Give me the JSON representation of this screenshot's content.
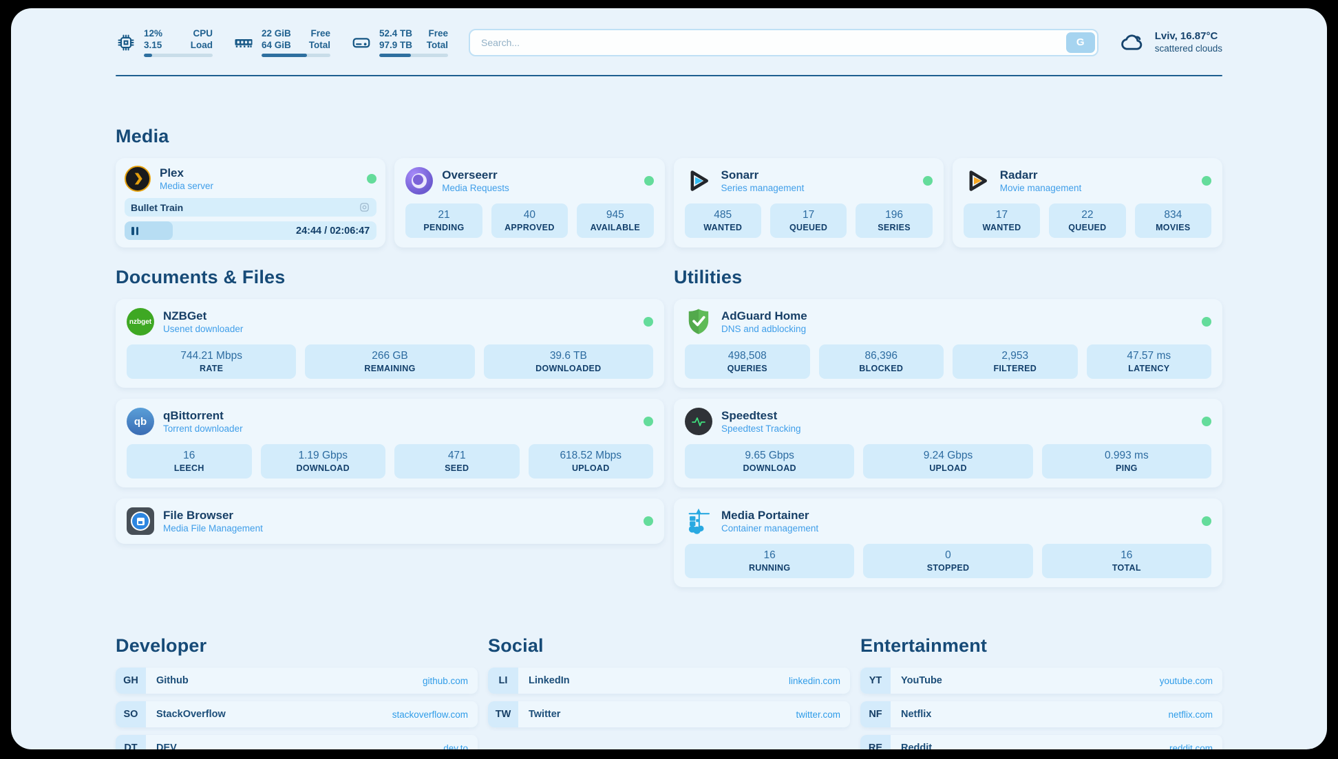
{
  "header": {
    "stats": [
      {
        "rows": [
          {
            "value": "12%",
            "label": "CPU"
          },
          {
            "value": "3.15",
            "label": "Load"
          }
        ],
        "progress": 12
      },
      {
        "rows": [
          {
            "value": "22 GiB",
            "label": "Free"
          },
          {
            "value": "64 GiB",
            "label": "Total"
          }
        ],
        "progress": 66
      },
      {
        "rows": [
          {
            "value": "52.4 TB",
            "label": "Free"
          },
          {
            "value": "97.9 TB",
            "label": "Total"
          }
        ],
        "progress": 46
      }
    ],
    "search": {
      "placeholder": "Search...",
      "button": "G"
    },
    "weather": {
      "title": "Lviv, 16.87°C",
      "subtitle": "scattered clouds"
    }
  },
  "media": {
    "title": "Media",
    "plex": {
      "name": "Plex",
      "subtitle": "Media server",
      "session": {
        "title": "Bullet Train",
        "time": "24:44 / 02:06:47",
        "progress": 19
      }
    },
    "apps": [
      {
        "name": "Overseerr",
        "subtitle": "Media Requests",
        "stats": [
          {
            "value": "21",
            "label": "PENDING"
          },
          {
            "value": "40",
            "label": "APPROVED"
          },
          {
            "value": "945",
            "label": "AVAILABLE"
          }
        ]
      },
      {
        "name": "Sonarr",
        "subtitle": "Series management",
        "stats": [
          {
            "value": "485",
            "label": "WANTED"
          },
          {
            "value": "17",
            "label": "QUEUED"
          },
          {
            "value": "196",
            "label": "SERIES"
          }
        ]
      },
      {
        "name": "Radarr",
        "subtitle": "Movie management",
        "stats": [
          {
            "value": "17",
            "label": "WANTED"
          },
          {
            "value": "22",
            "label": "QUEUED"
          },
          {
            "value": "834",
            "label": "MOVIES"
          }
        ]
      }
    ]
  },
  "documents": {
    "title": "Documents & Files",
    "apps": [
      {
        "name": "NZBGet",
        "subtitle": "Usenet downloader",
        "icon_text": "nzbget",
        "stats": [
          {
            "value": "744.21 Mbps",
            "label": "RATE"
          },
          {
            "value": "266 GB",
            "label": "REMAINING"
          },
          {
            "value": "39.6 TB",
            "label": "DOWNLOADED"
          }
        ]
      },
      {
        "name": "qBittorrent",
        "subtitle": "Torrent downloader",
        "icon_text": "qb",
        "stats": [
          {
            "value": "16",
            "label": "LEECH"
          },
          {
            "value": "1.19 Gbps",
            "label": "DOWNLOAD"
          },
          {
            "value": "471",
            "label": "SEED"
          },
          {
            "value": "618.52 Mbps",
            "label": "UPLOAD"
          }
        ]
      },
      {
        "name": "File Browser",
        "subtitle": "Media File Management",
        "stats": []
      }
    ]
  },
  "utilities": {
    "title": "Utilities",
    "apps": [
      {
        "name": "AdGuard Home",
        "subtitle": "DNS and adblocking",
        "stats": [
          {
            "value": "498,508",
            "label": "QUERIES"
          },
          {
            "value": "86,396",
            "label": "BLOCKED"
          },
          {
            "value": "2,953",
            "label": "FILTERED"
          },
          {
            "value": "47.57 ms",
            "label": "LATENCY"
          }
        ]
      },
      {
        "name": "Speedtest",
        "subtitle": "Speedtest Tracking",
        "stats": [
          {
            "value": "9.65 Gbps",
            "label": "DOWNLOAD"
          },
          {
            "value": "9.24 Gbps",
            "label": "UPLOAD"
          },
          {
            "value": "0.993 ms",
            "label": "PING"
          }
        ]
      },
      {
        "name": "Media Portainer",
        "subtitle": "Container management",
        "stats": [
          {
            "value": "16",
            "label": "RUNNING"
          },
          {
            "value": "0",
            "label": "STOPPED"
          },
          {
            "value": "16",
            "label": "TOTAL"
          }
        ]
      }
    ]
  },
  "links": {
    "developer": {
      "title": "Developer",
      "items": [
        {
          "abbr": "GH",
          "name": "Github",
          "url": "github.com"
        },
        {
          "abbr": "SO",
          "name": "StackOverflow",
          "url": "stackoverflow.com"
        },
        {
          "abbr": "DT",
          "name": "DEV",
          "url": "dev.to"
        }
      ]
    },
    "social": {
      "title": "Social",
      "items": [
        {
          "abbr": "LI",
          "name": "LinkedIn",
          "url": "linkedin.com"
        },
        {
          "abbr": "TW",
          "name": "Twitter",
          "url": "twitter.com"
        }
      ]
    },
    "entertainment": {
      "title": "Entertainment",
      "items": [
        {
          "abbr": "YT",
          "name": "YouTube",
          "url": "youtube.com"
        },
        {
          "abbr": "NF",
          "name": "Netflix",
          "url": "netflix.com"
        },
        {
          "abbr": "RE",
          "name": "Reddit",
          "url": "reddit.com"
        }
      ]
    }
  },
  "colors": {
    "accent": "#2f9ce8",
    "status_green": "#64dc9b",
    "navy": "#164a77"
  }
}
